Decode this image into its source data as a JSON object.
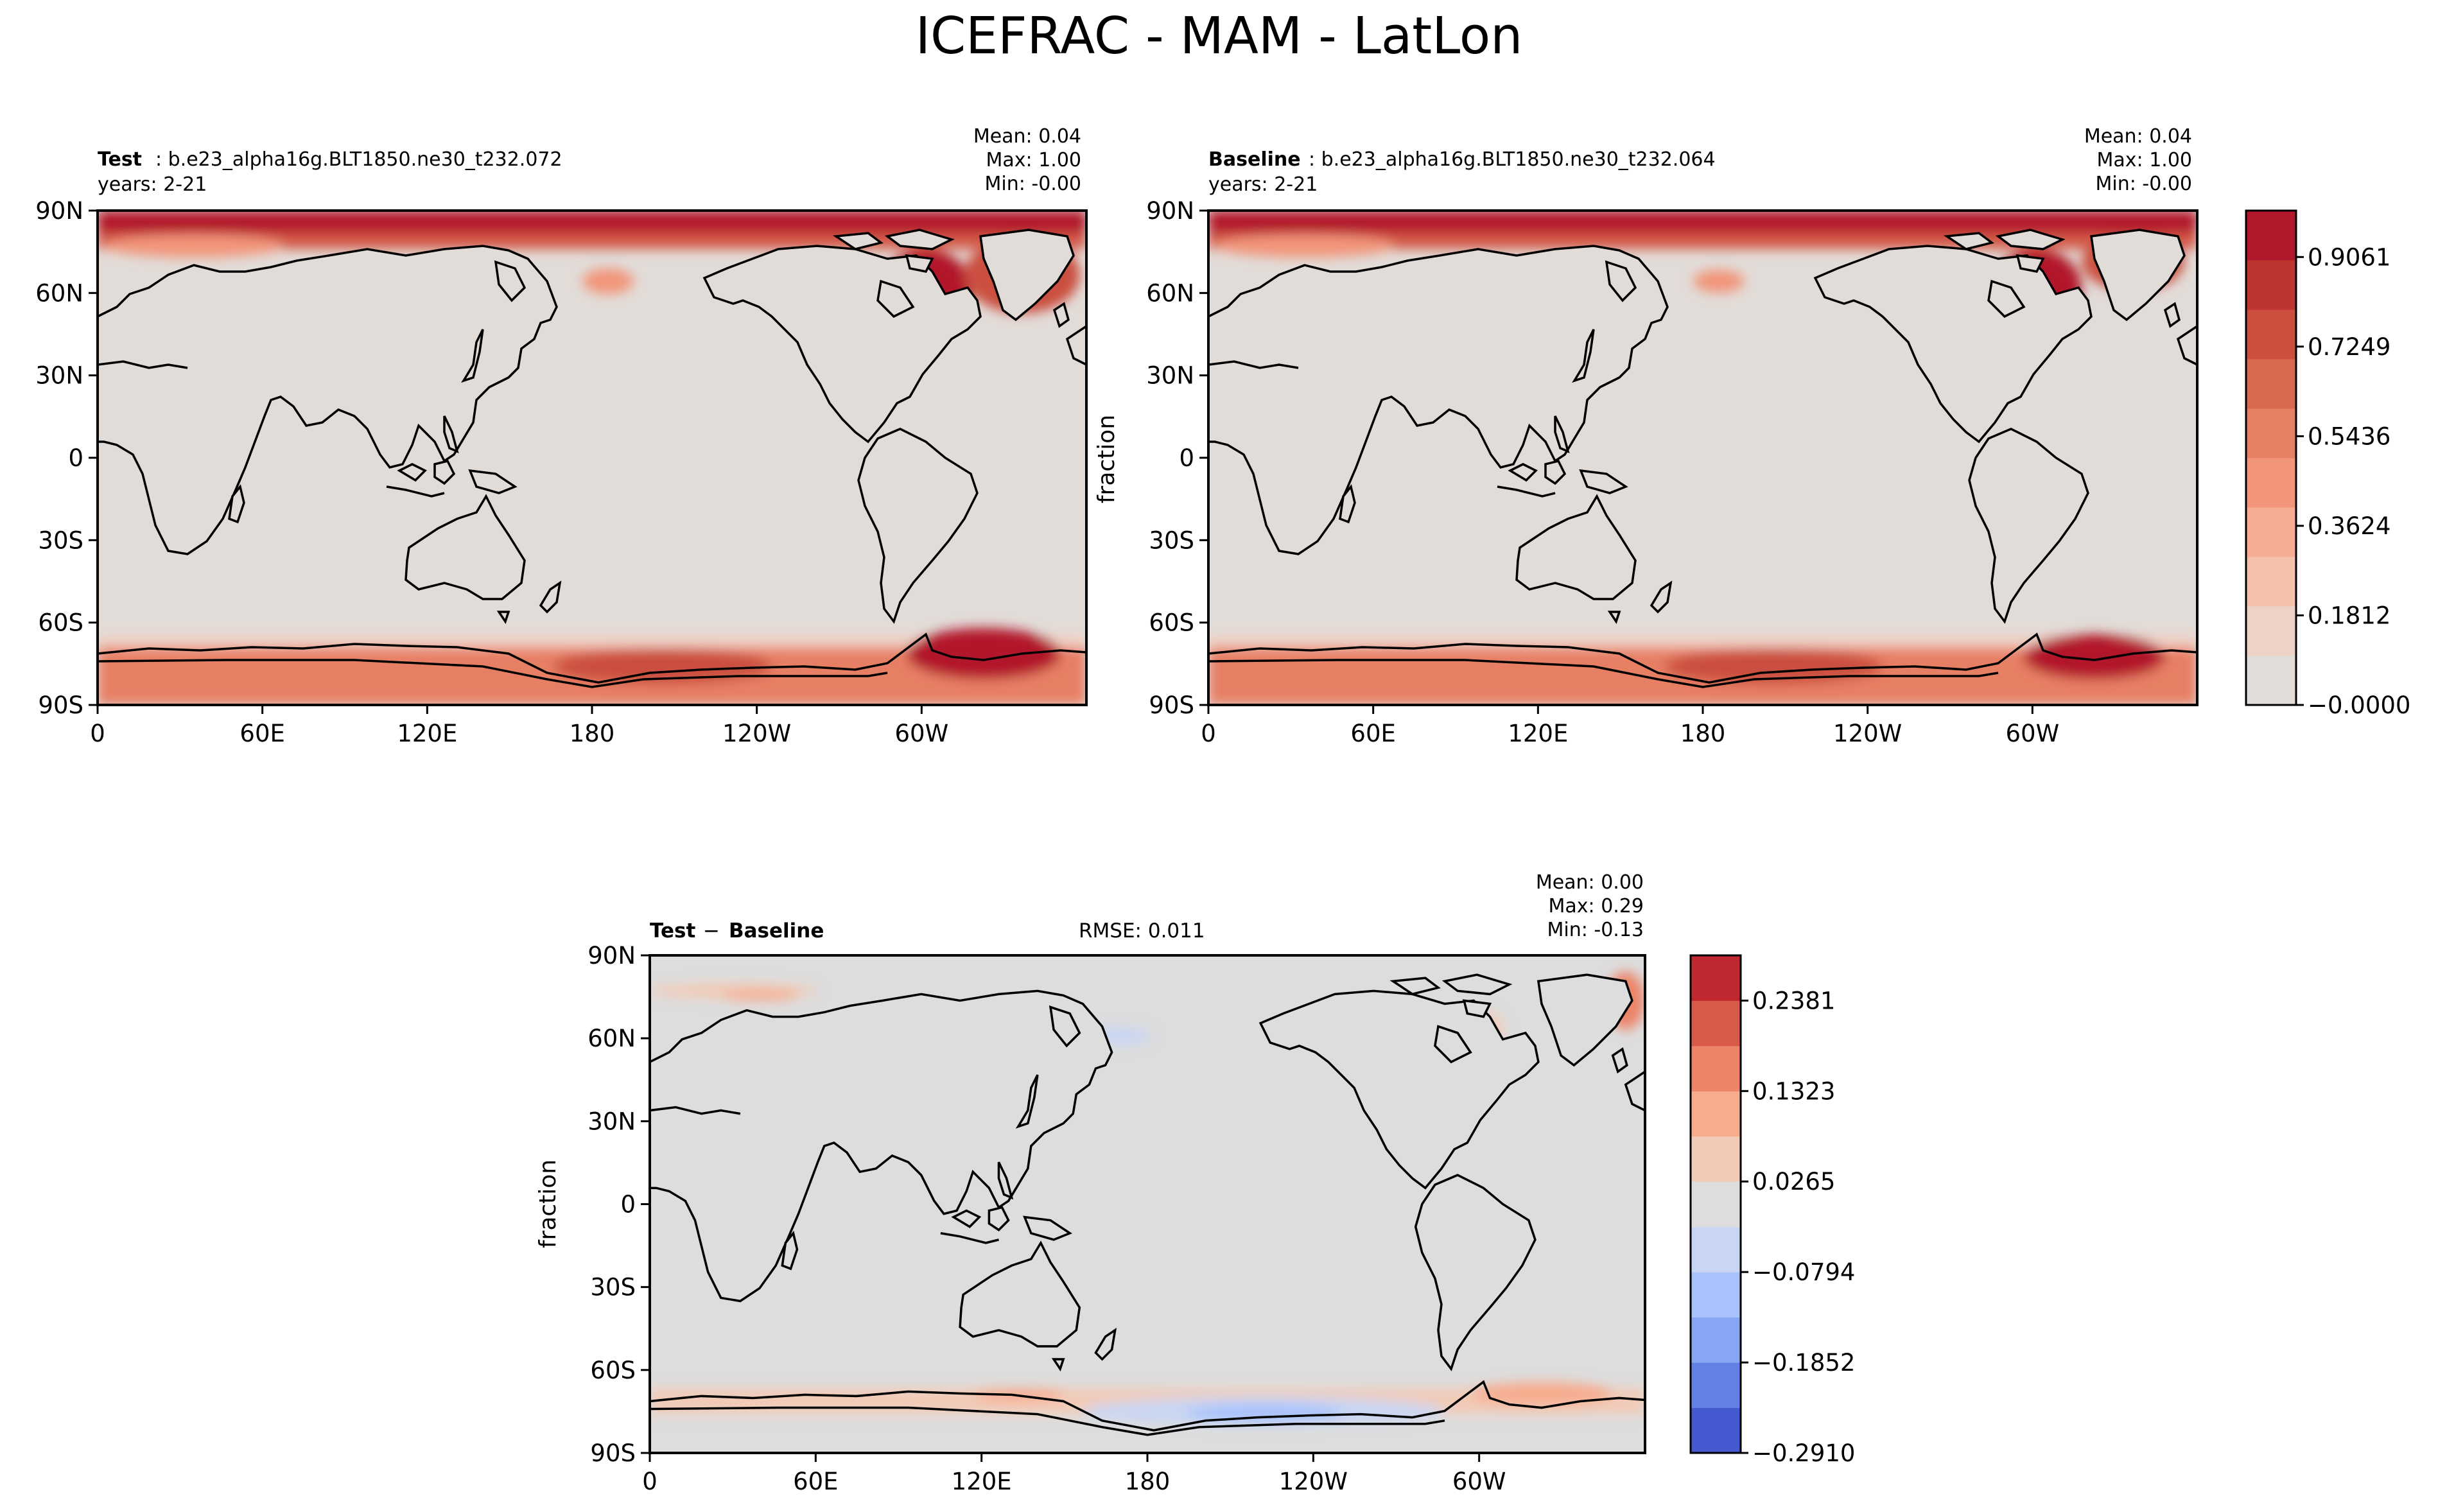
{
  "figure": {
    "title": "ICEFRAC - MAM - LatLon"
  },
  "colors": {
    "land_outline": "#000000",
    "abs_scale": [
      "#e2dcd8",
      "#efd2c6",
      "#f5c1ad",
      "#f7ad93",
      "#f2957a",
      "#e77f65",
      "#d96850",
      "#cb4f3f",
      "#bd3430",
      "#b2182b"
    ],
    "diff_scale": [
      "#4459cf",
      "#6381e4",
      "#86a6f4",
      "#a8c2fc",
      "#c9d6f3",
      "#dddddd",
      "#f2cbb7",
      "#f7ac8e",
      "#ed8469",
      "#d85a4b",
      "#c0282f"
    ]
  },
  "chart_data": [
    {
      "type": "heatmap",
      "panel": "test",
      "label_bold": "Test",
      "label_rest": ": b.e23_alpha16g.BLT1850.ne30_t232.072",
      "years": "years: 2-21",
      "stats": {
        "mean": "Mean:  0.04",
        "max": "Max:  1.00",
        "min": "Min: -0.00"
      },
      "ylabel": "",
      "yticks": [
        "90N",
        "60N",
        "30N",
        "0",
        "30S",
        "60S",
        "90S"
      ],
      "xticks": [
        "0",
        "60E",
        "120E",
        "180",
        "120W",
        "60W"
      ],
      "xlim": [
        0,
        360
      ],
      "ylim": [
        -90,
        90
      ],
      "field": "sea ice fraction, near 1.0 in Arctic basin, Hudson Bay and around Antarctica, 0 elsewhere"
    },
    {
      "type": "heatmap",
      "panel": "baseline",
      "label_bold": "Baseline",
      "label_rest": ": b.e23_alpha16g.BLT1850.ne30_t232.064",
      "years": "years: 2-21",
      "stats": {
        "mean": "Mean:  0.04",
        "max": "Max:  1.00",
        "min": "Min: -0.00"
      },
      "ylabel": "fraction",
      "yticks": [
        "90N",
        "60N",
        "30N",
        "0",
        "30S",
        "60S",
        "90S"
      ],
      "xticks": [
        "0",
        "60E",
        "120E",
        "180",
        "120W",
        "60W"
      ],
      "xlim": [
        0,
        360
      ],
      "ylim": [
        -90,
        90
      ],
      "colorbar": {
        "ticks": [
          0.9061,
          0.7249,
          0.5436,
          0.3624,
          0.1812,
          -0.0
        ],
        "tick_labels": [
          "0.9061",
          "0.7249",
          "0.5436",
          "0.3624",
          "0.1812",
          "−0.0000"
        ],
        "range": [
          -0.0,
          1.0
        ]
      }
    },
    {
      "type": "heatmap",
      "panel": "difference",
      "label_bold_1": "Test",
      "label_sep": " − ",
      "label_bold_2": "Baseline",
      "rmse": "RMSE: 0.011",
      "stats": {
        "mean": "Mean:  0.00",
        "max": "Max:  0.29",
        "min": "Min: -0.13"
      },
      "ylabel": "fraction",
      "yticks": [
        "90N",
        "60N",
        "30N",
        "0",
        "30S",
        "60S",
        "90S"
      ],
      "xticks": [
        "0",
        "60E",
        "120E",
        "180",
        "120W",
        "60W"
      ],
      "xlim": [
        0,
        360
      ],
      "ylim": [
        -90,
        90
      ],
      "colorbar": {
        "ticks": [
          0.2381,
          0.1323,
          0.0265,
          -0.0794,
          -0.1852,
          -0.291
        ],
        "tick_labels": [
          "0.2381",
          "0.1323",
          "0.0265",
          "−0.0794",
          "−0.1852",
          "−0.2910"
        ],
        "range": [
          -0.291,
          0.291
        ]
      }
    }
  ]
}
